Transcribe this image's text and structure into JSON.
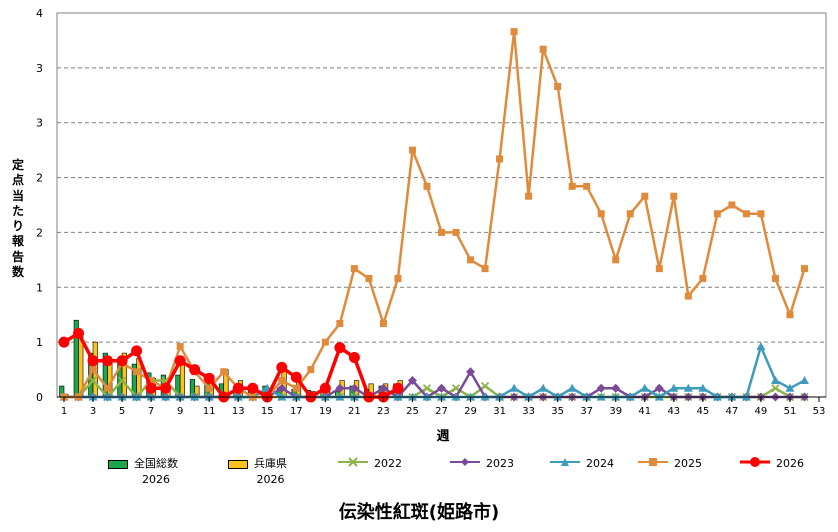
{
  "chart_data": {
    "type": "bar+line",
    "title": "伝染性紅斑(姫路市)",
    "xlabel": "週",
    "ylabel": "定点当たり報告数",
    "y_tick_labels": [
      "0",
      "1",
      "1",
      "2",
      "2",
      "3",
      "3",
      "4"
    ],
    "x_tick_labels": [
      "1",
      "3",
      "5",
      "7",
      "9",
      "11",
      "13",
      "15",
      "17",
      "19",
      "21",
      "23",
      "25",
      "27",
      "29",
      "31",
      "33",
      "35",
      "37",
      "39",
      "41",
      "43",
      "45",
      "47",
      "49",
      "51",
      "53"
    ],
    "ylim": [
      0,
      3.5
    ],
    "x_range": [
      1,
      53
    ],
    "grid": "horizontal dashed",
    "legend_position": "bottom",
    "bar_series": [
      {
        "name": "全国総数",
        "sub": "2026",
        "color": "#1aa84a",
        "values": [
          0.1,
          0.7,
          0.4,
          0.4,
          0.35,
          0.3,
          0.22,
          0.2,
          0.2,
          0.16,
          0.13,
          0.12,
          0.07,
          0.05,
          0.1,
          0.08,
          0.07,
          0.06,
          0.06,
          0.05,
          0.1,
          0.07,
          0.1,
          0.12
        ]
      },
      {
        "name": "兵庫県",
        "sub": "2026",
        "color": "#ffc21a",
        "values": [
          0.02,
          0.6,
          0.5,
          0.35,
          0.4,
          0.35,
          0.17,
          0.09,
          0.3,
          0.1,
          0.2,
          0.25,
          0.15,
          0.1,
          0.06,
          0.24,
          0.17,
          0.05,
          0.07,
          0.15,
          0.15,
          0.12,
          0.12,
          0.15
        ]
      }
    ],
    "line_series": [
      {
        "name": "2022",
        "color": "#8db44a",
        "marker": "x",
        "x": [
          1,
          2,
          3,
          4,
          5,
          6,
          7,
          8,
          9,
          10,
          11,
          12,
          13,
          14,
          15,
          16,
          17,
          18,
          19,
          20,
          21,
          22,
          23,
          24,
          25,
          26,
          27,
          28,
          29,
          30,
          31,
          32,
          33,
          34,
          35,
          36,
          37,
          38,
          39,
          40,
          41,
          42,
          43,
          44,
          45,
          46,
          47,
          48,
          49,
          50,
          51,
          52
        ],
        "y": [
          0,
          0,
          0.15,
          0,
          0.15,
          0,
          0.15,
          0.15,
          0,
          0,
          0,
          0,
          0,
          0,
          0,
          0,
          0,
          0,
          0,
          0,
          0,
          0,
          0,
          0,
          0,
          0.08,
          0,
          0.08,
          0,
          0.1,
          0,
          0,
          0,
          0,
          0,
          0,
          0,
          0,
          0,
          0,
          0,
          0,
          0,
          0,
          0,
          0,
          0,
          0,
          0,
          0.08,
          0,
          0
        ]
      },
      {
        "name": "2023",
        "color": "#7b4b9a",
        "marker": "diamond",
        "x": [
          1,
          2,
          3,
          4,
          5,
          6,
          7,
          8,
          9,
          10,
          11,
          12,
          13,
          14,
          15,
          16,
          17,
          18,
          19,
          20,
          21,
          22,
          23,
          24,
          25,
          26,
          27,
          28,
          29,
          30,
          31,
          32,
          33,
          34,
          35,
          36,
          37,
          38,
          39,
          40,
          41,
          42,
          43,
          44,
          45,
          46,
          47,
          48,
          49,
          50,
          51,
          52
        ],
        "y": [
          0,
          0,
          0,
          0,
          0,
          0,
          0,
          0,
          0,
          0,
          0,
          0,
          0,
          0,
          0,
          0.08,
          0,
          0,
          0,
          0.08,
          0.08,
          0,
          0.08,
          0,
          0.15,
          0,
          0.08,
          0,
          0.23,
          0,
          0,
          0,
          0,
          0,
          0,
          0,
          0,
          0.08,
          0.08,
          0,
          0,
          0.08,
          0,
          0,
          0,
          0,
          0,
          0,
          0,
          0,
          0,
          0
        ]
      },
      {
        "name": "2024",
        "color": "#3f9bbd",
        "marker": "triangle",
        "x": [
          1,
          2,
          3,
          4,
          5,
          6,
          7,
          8,
          9,
          10,
          11,
          12,
          13,
          14,
          15,
          16,
          17,
          18,
          19,
          20,
          21,
          22,
          23,
          24,
          25,
          26,
          27,
          28,
          29,
          30,
          31,
          32,
          33,
          34,
          35,
          36,
          37,
          38,
          39,
          40,
          41,
          42,
          43,
          44,
          45,
          46,
          47,
          48,
          49,
          50,
          51,
          52
        ],
        "y": [
          0,
          0,
          0,
          0,
          0,
          0,
          0,
          0,
          0,
          0,
          0,
          0,
          0,
          0,
          0.08,
          0,
          0,
          0,
          0,
          0,
          0,
          0,
          0,
          0,
          0,
          0,
          0,
          0,
          0,
          0,
          0,
          0.08,
          0,
          0.08,
          0,
          0.08,
          0,
          0,
          0,
          0,
          0.08,
          0,
          0.08,
          0.08,
          0.08,
          0,
          0,
          0,
          0.46,
          0.15,
          0.08,
          0.15
        ]
      },
      {
        "name": "2025",
        "color": "#e08a3c",
        "marker": "square",
        "x": [
          1,
          2,
          3,
          4,
          5,
          6,
          7,
          8,
          9,
          10,
          11,
          12,
          13,
          14,
          15,
          16,
          17,
          18,
          19,
          20,
          21,
          22,
          23,
          24,
          25,
          26,
          27,
          28,
          29,
          30,
          31,
          32,
          33,
          34,
          35,
          36,
          37,
          38,
          39,
          40,
          41,
          42,
          43,
          44,
          45,
          46,
          47,
          48,
          49,
          50,
          51,
          52
        ],
        "y": [
          0,
          0,
          0.25,
          0.08,
          0.31,
          0.23,
          0.15,
          0.08,
          0.46,
          0.23,
          0.08,
          0.23,
          0.08,
          0,
          0,
          0.15,
          0.08,
          0.25,
          0.5,
          0.67,
          1.17,
          1.08,
          0.67,
          1.08,
          2.25,
          1.92,
          1.5,
          1.5,
          1.25,
          1.17,
          2.17,
          3.33,
          1.83,
          3.17,
          2.83,
          1.92,
          1.92,
          1.67,
          1.25,
          1.67,
          1.83,
          1.17,
          1.83,
          0.92,
          1.08,
          1.67,
          1.75,
          1.67,
          1.67,
          1.08,
          0.75,
          1.17
        ]
      },
      {
        "name": "2026",
        "color": "#ff0000",
        "marker": "circle",
        "x": [
          1,
          2,
          3,
          4,
          5,
          6,
          7,
          8,
          9,
          10,
          11,
          12,
          13,
          14,
          15,
          16,
          17,
          18,
          19,
          20,
          21,
          22,
          23,
          24
        ],
        "y": [
          0.5,
          0.58,
          0.33,
          0.33,
          0.33,
          0.42,
          0.08,
          0.08,
          0.33,
          0.25,
          0.17,
          0,
          0.08,
          0.08,
          0,
          0.27,
          0.18,
          0,
          0.08,
          0.45,
          0.36,
          0,
          0,
          0.08
        ]
      }
    ]
  }
}
